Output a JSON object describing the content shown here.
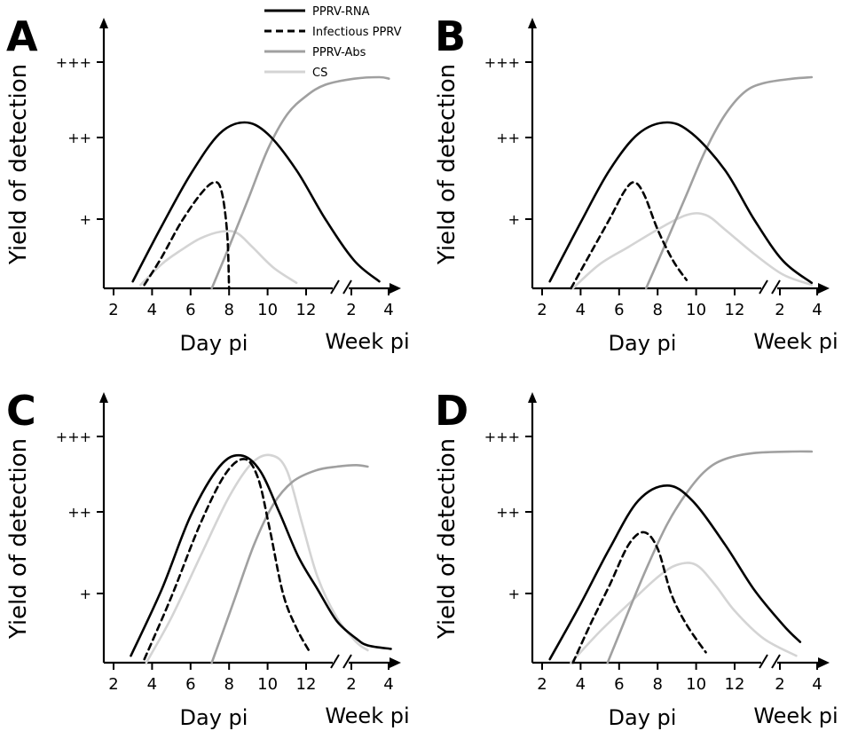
{
  "legend": [
    {
      "name": "PPRV-RNA",
      "color": "#000000",
      "dashed": false
    },
    {
      "name": "Infectious PPRV",
      "color": "#000000",
      "dashed": true
    },
    {
      "name": "PPRV-Abs",
      "color": "#a0a0a0",
      "dashed": false
    },
    {
      "name": "CS",
      "color": "#d4d4d4",
      "dashed": false
    }
  ],
  "axes": {
    "ylabel": "Yield of detection",
    "yticks": [
      "+",
      "++",
      "+++"
    ],
    "day_label": "Day pi",
    "week_label": "Week pi",
    "day_ticks": [
      "2",
      "4",
      "6",
      "8",
      "10",
      "12"
    ],
    "week_ticks": [
      "2",
      "4"
    ]
  },
  "chart_data": [
    {
      "panel": "A",
      "type": "line",
      "xlabel": "Day pi / Week pi",
      "ylabel": "Yield of detection",
      "y_scale": "0 = baseline, 1 = +, 2 = ++, 3 = +++",
      "series": [
        {
          "name": "PPRV-RNA",
          "points": [
            [
              3.0,
              0.1
            ],
            [
              4.5,
              0.9
            ],
            [
              6.0,
              1.55
            ],
            [
              7.5,
              2.05
            ],
            [
              8.8,
              2.2
            ],
            [
              10.0,
              2.05
            ],
            [
              11.5,
              1.6
            ],
            [
              13.0,
              1.0
            ],
            [
              14.5,
              0.4
            ],
            [
              15.8,
              0.1
            ]
          ]
        },
        {
          "name": "Infectious PPRV",
          "points": [
            [
              3.6,
              0.05
            ],
            [
              4.5,
              0.45
            ],
            [
              5.5,
              0.95
            ],
            [
              6.5,
              1.3
            ],
            [
              7.2,
              1.45
            ],
            [
              7.6,
              1.35
            ],
            [
              7.9,
              0.8
            ],
            [
              8.0,
              0.0
            ]
          ]
        },
        {
          "name": "PPRV-Abs",
          "points": [
            [
              7.1,
              0.0
            ],
            [
              8.0,
              0.6
            ],
            [
              9.0,
              1.25
            ],
            [
              10.0,
              1.85
            ],
            [
              11.0,
              2.3
            ],
            [
              12.0,
              2.55
            ],
            [
              13.0,
              2.7
            ],
            [
              14.5,
              2.78
            ],
            [
              15.8,
              2.8
            ],
            [
              16.3,
              2.78
            ]
          ]
        },
        {
          "name": "CS",
          "points": [
            [
              3.4,
              0.05
            ],
            [
              4.5,
              0.35
            ],
            [
              5.5,
              0.55
            ],
            [
              6.5,
              0.72
            ],
            [
              7.6,
              0.82
            ],
            [
              8.4,
              0.8
            ],
            [
              9.2,
              0.6
            ],
            [
              10.3,
              0.3
            ],
            [
              11.5,
              0.08
            ]
          ]
        }
      ]
    },
    {
      "panel": "B",
      "type": "line",
      "xlabel": "Day pi / Week pi",
      "ylabel": "Yield of detection",
      "y_scale": "0 = baseline, 1 = +, 2 = ++, 3 = +++",
      "series": [
        {
          "name": "PPRV-RNA",
          "points": [
            [
              2.4,
              0.1
            ],
            [
              4.0,
              0.95
            ],
            [
              5.5,
              1.6
            ],
            [
              7.0,
              2.05
            ],
            [
              8.5,
              2.2
            ],
            [
              9.8,
              2.05
            ],
            [
              11.5,
              1.6
            ],
            [
              13.0,
              1.0
            ],
            [
              14.5,
              0.4
            ],
            [
              16.0,
              0.08
            ]
          ]
        },
        {
          "name": "Infectious PPRV",
          "points": [
            [
              3.5,
              0.0
            ],
            [
              4.5,
              0.5
            ],
            [
              5.5,
              1.0
            ],
            [
              6.3,
              1.35
            ],
            [
              6.8,
              1.45
            ],
            [
              7.3,
              1.3
            ],
            [
              8.0,
              0.85
            ],
            [
              8.8,
              0.4
            ],
            [
              9.5,
              0.12
            ]
          ]
        },
        {
          "name": "PPRV-Abs",
          "points": [
            [
              7.4,
              0.0
            ],
            [
              8.5,
              0.7
            ],
            [
              9.5,
              1.3
            ],
            [
              10.5,
              1.85
            ],
            [
              11.5,
              2.3
            ],
            [
              12.5,
              2.6
            ],
            [
              13.5,
              2.72
            ],
            [
              15.0,
              2.78
            ],
            [
              16.0,
              2.8
            ]
          ]
        },
        {
          "name": "CS",
          "points": [
            [
              3.6,
              0.0
            ],
            [
              5.0,
              0.35
            ],
            [
              6.5,
              0.6
            ],
            [
              8.0,
              0.85
            ],
            [
              9.5,
              1.05
            ],
            [
              10.5,
              1.05
            ],
            [
              11.5,
              0.85
            ],
            [
              13.0,
              0.5
            ],
            [
              14.5,
              0.2
            ],
            [
              16.0,
              0.05
            ]
          ]
        }
      ]
    },
    {
      "panel": "C",
      "type": "line",
      "xlabel": "Day pi / Week pi",
      "ylabel": "Yield of detection",
      "y_scale": "0 = baseline, 1 = +, 2 = ++, 3 = +++",
      "series": [
        {
          "name": "PPRV-RNA",
          "points": [
            [
              2.9,
              0.1
            ],
            [
              4.5,
              1.05
            ],
            [
              6.0,
              1.95
            ],
            [
              7.5,
              2.6
            ],
            [
              8.6,
              2.75
            ],
            [
              9.6,
              2.55
            ],
            [
              10.6,
              2.0
            ],
            [
              11.6,
              1.45
            ],
            [
              12.6,
              1.05
            ],
            [
              13.6,
              0.6
            ],
            [
              14.6,
              0.35
            ],
            [
              15.2,
              0.25
            ],
            [
              16.4,
              0.2
            ]
          ]
        },
        {
          "name": "Infectious PPRV",
          "points": [
            [
              3.6,
              0.05
            ],
            [
              5.0,
              0.95
            ],
            [
              6.5,
              1.85
            ],
            [
              7.8,
              2.5
            ],
            [
              8.8,
              2.7
            ],
            [
              9.5,
              2.45
            ],
            [
              10.1,
              1.8
            ],
            [
              10.8,
              1.0
            ],
            [
              11.5,
              0.5
            ],
            [
              12.2,
              0.15
            ]
          ]
        },
        {
          "name": "PPRV-Abs",
          "points": [
            [
              7.1,
              0.0
            ],
            [
              8.2,
              0.85
            ],
            [
              9.3,
              1.6
            ],
            [
              10.3,
              2.1
            ],
            [
              11.3,
              2.4
            ],
            [
              12.5,
              2.55
            ],
            [
              13.6,
              2.6
            ],
            [
              14.6,
              2.62
            ],
            [
              15.2,
              2.6
            ]
          ]
        },
        {
          "name": "CS",
          "points": [
            [
              3.7,
              0.0
            ],
            [
              5.0,
              0.65
            ],
            [
              6.5,
              1.45
            ],
            [
              8.0,
              2.2
            ],
            [
              9.2,
              2.65
            ],
            [
              10.2,
              2.75
            ],
            [
              11.0,
              2.55
            ],
            [
              11.8,
              1.85
            ],
            [
              12.6,
              1.2
            ],
            [
              13.6,
              0.65
            ],
            [
              14.6,
              0.3
            ],
            [
              15.2,
              0.18
            ]
          ]
        }
      ]
    },
    {
      "panel": "D",
      "type": "line",
      "xlabel": "Day pi / Week pi",
      "ylabel": "Yield of detection",
      "y_scale": "0 = baseline, 1 = +, 2 = ++, 3 = +++",
      "series": [
        {
          "name": "PPRV-RNA",
          "points": [
            [
              2.4,
              0.05
            ],
            [
              4.0,
              0.85
            ],
            [
              5.5,
              1.55
            ],
            [
              7.0,
              2.15
            ],
            [
              8.5,
              2.35
            ],
            [
              9.8,
              2.15
            ],
            [
              11.5,
              1.6
            ],
            [
              13.0,
              1.05
            ],
            [
              14.5,
              0.55
            ],
            [
              15.4,
              0.3
            ]
          ]
        },
        {
          "name": "Infectious PPRV",
          "points": [
            [
              3.6,
              0.0
            ],
            [
              4.5,
              0.55
            ],
            [
              5.5,
              1.1
            ],
            [
              6.5,
              1.6
            ],
            [
              7.3,
              1.75
            ],
            [
              8.0,
              1.55
            ],
            [
              8.7,
              1.0
            ],
            [
              9.5,
              0.55
            ],
            [
              10.5,
              0.15
            ]
          ]
        },
        {
          "name": "PPRV-Abs",
          "points": [
            [
              5.4,
              0.0
            ],
            [
              6.5,
              0.75
            ],
            [
              7.5,
              1.35
            ],
            [
              8.5,
              1.85
            ],
            [
              9.5,
              2.25
            ],
            [
              10.5,
              2.55
            ],
            [
              11.5,
              2.7
            ],
            [
              13.0,
              2.78
            ],
            [
              15.0,
              2.8
            ],
            [
              16.0,
              2.8
            ]
          ]
        },
        {
          "name": "CS",
          "points": [
            [
              3.5,
              0.0
            ],
            [
              5.0,
              0.45
            ],
            [
              6.5,
              0.85
            ],
            [
              8.0,
              1.2
            ],
            [
              9.0,
              1.35
            ],
            [
              10.0,
              1.35
            ],
            [
              11.0,
              1.1
            ],
            [
              12.0,
              0.75
            ],
            [
              13.5,
              0.35
            ],
            [
              15.2,
              0.1
            ]
          ]
        }
      ]
    }
  ]
}
